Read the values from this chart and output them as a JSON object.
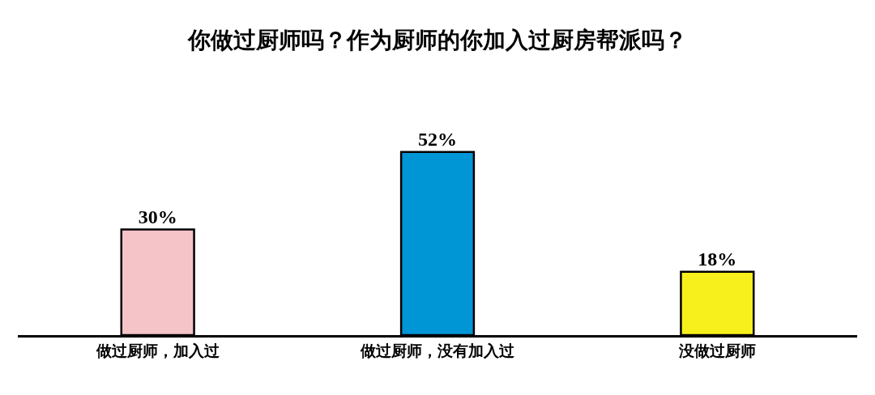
{
  "chart_data": {
    "type": "bar",
    "title": "你做过厨师吗？作为厨师的你加入过厨房帮派吗？",
    "categories": [
      "做过厨师，加入过",
      "做过厨师，没有加入过",
      "没做过厨师"
    ],
    "values": [
      30,
      52,
      18
    ],
    "colors": [
      "#f4c4c9",
      "#0096d6",
      "#f8f01c"
    ],
    "value_labels": [
      "30%",
      "52%",
      "18%"
    ],
    "legend": false
  }
}
